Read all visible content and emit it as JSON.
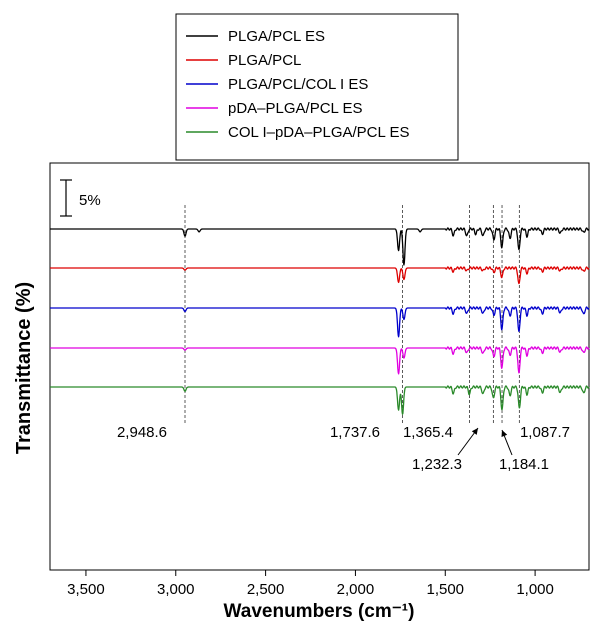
{
  "chart_data": {
    "type": "line",
    "xlabel": "Wavenumbers (cm⁻¹)",
    "ylabel": "Transmittance (%)",
    "xlim": [
      3700,
      700
    ],
    "x_reversed": true,
    "x_ticks": [
      3500,
      3000,
      2500,
      2000,
      1500,
      1000
    ],
    "x_tick_labels": [
      "3,500",
      "3,000",
      "2,500",
      "2,000",
      "1,500",
      "1,000"
    ],
    "scale_bar_label": "5%",
    "legend_position": "top-center",
    "grid": false,
    "series": [
      {
        "name": "PLGA/PCL ES",
        "color": "#000000",
        "peaks": [
          [
            2948.6,
            1.0
          ],
          [
            2870,
            0.4
          ],
          [
            1760,
            3.0
          ],
          [
            1730,
            5.0
          ],
          [
            1640,
            0.4
          ],
          [
            1455,
            0.9
          ],
          [
            1380,
            1.0
          ],
          [
            1330,
            0.7
          ],
          [
            1290,
            1.0
          ],
          [
            1230,
            1.5
          ],
          [
            1185,
            2.6
          ],
          [
            1140,
            1.3
          ],
          [
            1090,
            3.0
          ],
          [
            1045,
            1.0
          ],
          [
            960,
            0.7
          ],
          [
            860,
            0.6
          ],
          [
            730,
            0.5
          ]
        ]
      },
      {
        "name": "PLGA/PCL",
        "color": "#dd0000",
        "peaks": [
          [
            2948.6,
            0.3
          ],
          [
            1760,
            2.0
          ],
          [
            1730,
            1.6
          ],
          [
            1455,
            0.5
          ],
          [
            1380,
            0.4
          ],
          [
            1290,
            0.4
          ],
          [
            1230,
            0.6
          ],
          [
            1185,
            1.3
          ],
          [
            1090,
            2.3
          ],
          [
            1045,
            0.7
          ],
          [
            960,
            0.5
          ],
          [
            860,
            0.4
          ],
          [
            730,
            0.5
          ]
        ]
      },
      {
        "name": "PLGA/PCL/COL I ES",
        "color": "#0000cc",
        "peaks": [
          [
            2948.6,
            0.5
          ],
          [
            1760,
            4.0
          ],
          [
            1730,
            1.6
          ],
          [
            1455,
            0.8
          ],
          [
            1380,
            0.8
          ],
          [
            1290,
            0.8
          ],
          [
            1230,
            1.0
          ],
          [
            1185,
            3.0
          ],
          [
            1140,
            1.1
          ],
          [
            1090,
            3.4
          ],
          [
            1045,
            1.0
          ],
          [
            960,
            0.8
          ],
          [
            860,
            0.7
          ],
          [
            730,
            0.9
          ]
        ]
      },
      {
        "name": "pDA–PLGA/PCL ES",
        "color": "#e000e0",
        "peaks": [
          [
            2948.6,
            0.3
          ],
          [
            1760,
            3.6
          ],
          [
            1730,
            1.4
          ],
          [
            1455,
            0.8
          ],
          [
            1380,
            0.7
          ],
          [
            1290,
            0.8
          ],
          [
            1230,
            1.2
          ],
          [
            1185,
            2.8
          ],
          [
            1140,
            1.0
          ],
          [
            1090,
            3.6
          ],
          [
            1045,
            1.0
          ],
          [
            960,
            0.7
          ],
          [
            860,
            0.6
          ],
          [
            730,
            0.7
          ]
        ]
      },
      {
        "name": "COL I–pDA–PLGA/PCL ES",
        "color": "#2a8a2a",
        "peaks": [
          [
            2948.6,
            0.6
          ],
          [
            1760,
            3.2
          ],
          [
            1737.6,
            3.8
          ],
          [
            1455,
            0.9
          ],
          [
            1365.4,
            1.0
          ],
          [
            1290,
            1.0
          ],
          [
            1232.3,
            1.6
          ],
          [
            1184.1,
            3.2
          ],
          [
            1140,
            1.2
          ],
          [
            1087.7,
            3.0
          ],
          [
            1045,
            1.0
          ],
          [
            960,
            0.8
          ],
          [
            860,
            0.8
          ],
          [
            730,
            0.9
          ]
        ]
      }
    ],
    "annotations": [
      {
        "label": "2,948.6",
        "x": 2948.6
      },
      {
        "label": "1,737.6",
        "x": 1737.6
      },
      {
        "label": "1,365.4",
        "x": 1365.4
      },
      {
        "label": "1,232.3",
        "x": 1232.3
      },
      {
        "label": "1,184.1",
        "x": 1184.1
      },
      {
        "label": "1,087.7",
        "x": 1087.7
      }
    ]
  }
}
